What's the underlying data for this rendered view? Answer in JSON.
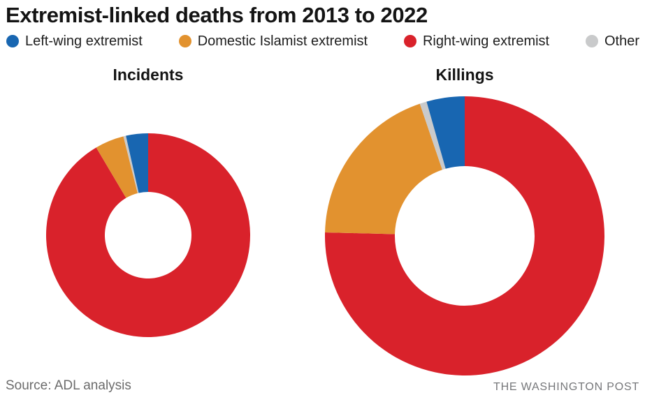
{
  "title": "Extremist-linked deaths from 2013 to 2022",
  "legend": [
    {
      "label": "Left-wing extremist",
      "color_key": "left_wing"
    },
    {
      "label": "Domestic Islamist extremist",
      "color_key": "islamist"
    },
    {
      "label": "Right-wing extremist",
      "color_key": "right_wing"
    },
    {
      "label": "Other",
      "color_key": "other"
    }
  ],
  "colors": {
    "left_wing": "#1866B1",
    "islamist": "#E2922F",
    "right_wing": "#D9222B",
    "other": "#C9CACB",
    "title_text": "#141414",
    "footer_text": "#6b6b6b"
  },
  "footer": {
    "source": "Source: ADL analysis",
    "credit": "THE WASHINGTON POST"
  },
  "chart_data": [
    {
      "type": "donut",
      "title": "Incidents",
      "legend_position": "top",
      "outer_radius": 146,
      "inner_radius": 62,
      "start_angle_deg": 0,
      "slices": [
        {
          "label": "Right-wing extremist",
          "color_key": "right_wing",
          "percent": 91.5
        },
        {
          "label": "Domestic Islamist extremist",
          "color_key": "islamist",
          "percent": 4.6
        },
        {
          "label": "Other",
          "color_key": "other",
          "percent": 0.4
        },
        {
          "label": "Left-wing extremist",
          "color_key": "left_wing",
          "percent": 3.5
        }
      ]
    },
    {
      "type": "donut",
      "title": "Killings",
      "legend_position": "top",
      "outer_radius": 200,
      "inner_radius": 100,
      "start_angle_deg": 0,
      "slices": [
        {
          "label": "Right-wing extremist",
          "color_key": "right_wing",
          "percent": 75.4
        },
        {
          "label": "Domestic Islamist extremist",
          "color_key": "islamist",
          "percent": 19.4
        },
        {
          "label": "Other",
          "color_key": "other",
          "percent": 0.8
        },
        {
          "label": "Left-wing extremist",
          "color_key": "left_wing",
          "percent": 4.4
        }
      ]
    }
  ]
}
